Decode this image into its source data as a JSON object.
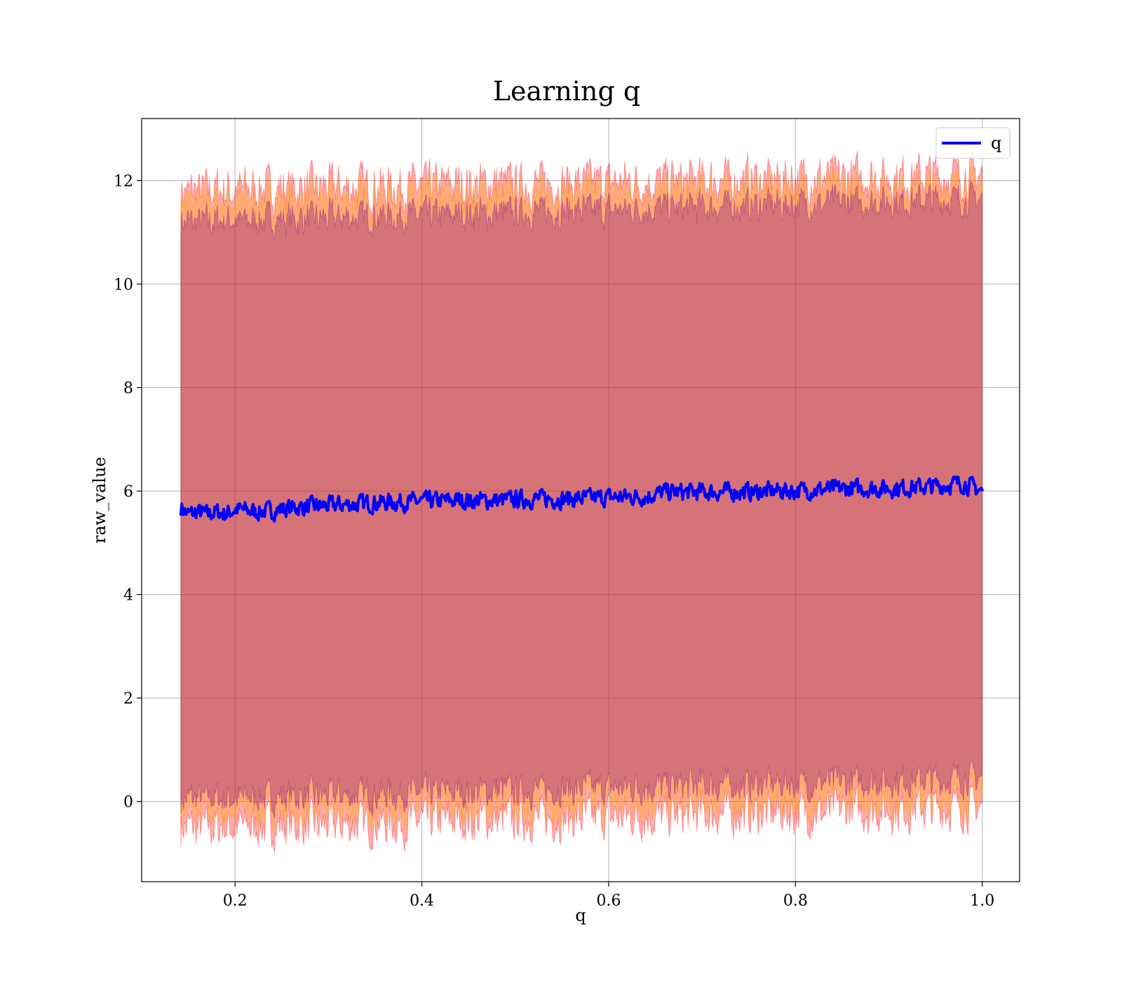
{
  "chart_data": {
    "type": "line",
    "title": "Learning q",
    "xlabel": "q",
    "ylabel": "raw_value",
    "xlim": [
      0.1,
      1.04
    ],
    "ylim": [
      -1.55,
      13.2
    ],
    "x_ticks": [
      0.2,
      0.4,
      0.6,
      0.8,
      1.0
    ],
    "x_tick_labels": [
      "0.2",
      "0.4",
      "0.6",
      "0.8",
      "1.0"
    ],
    "y_ticks": [
      0,
      2,
      4,
      6,
      8,
      10,
      12
    ],
    "y_tick_labels": [
      "0",
      "2",
      "4",
      "6",
      "8",
      "10",
      "12"
    ],
    "grid": true,
    "legend": {
      "position": "top-right",
      "entries": [
        "q"
      ]
    },
    "x_range": [
      0.142,
      1.0
    ],
    "series": [
      {
        "name": "q",
        "color": "#0000ff",
        "x": [
          0.142,
          0.15,
          0.16,
          0.17,
          0.18,
          0.19,
          0.2,
          0.22,
          0.24,
          0.26,
          0.28,
          0.3,
          0.33,
          0.36,
          0.4,
          0.44,
          0.48,
          0.52,
          0.56,
          0.6,
          0.64,
          0.66,
          0.7,
          0.74,
          0.78,
          0.82,
          0.86,
          0.9,
          0.94,
          0.98,
          1.0
        ],
        "y": [
          5.7,
          5.55,
          5.6,
          5.55,
          5.6,
          5.55,
          5.65,
          5.6,
          5.62,
          5.68,
          5.7,
          5.72,
          5.75,
          5.78,
          5.8,
          5.82,
          5.82,
          5.85,
          5.85,
          5.88,
          5.9,
          5.98,
          5.98,
          5.98,
          6.0,
          6.02,
          6.05,
          6.05,
          6.08,
          6.15,
          6.0
        ]
      }
    ],
    "bands": [
      {
        "color": "#ff0000",
        "lower": -0.5,
        "upper": 11.8,
        "lower_end": -0.1,
        "upper_end": 12.1
      },
      {
        "color": "#ffa500",
        "lower": -0.2,
        "upper": 11.6,
        "lower_end": 0.1,
        "upper_end": 11.9
      },
      {
        "color": "#800080",
        "lower": 0.05,
        "upper": 11.2,
        "lower_end": 0.45,
        "upper_end": 11.65
      }
    ]
  }
}
